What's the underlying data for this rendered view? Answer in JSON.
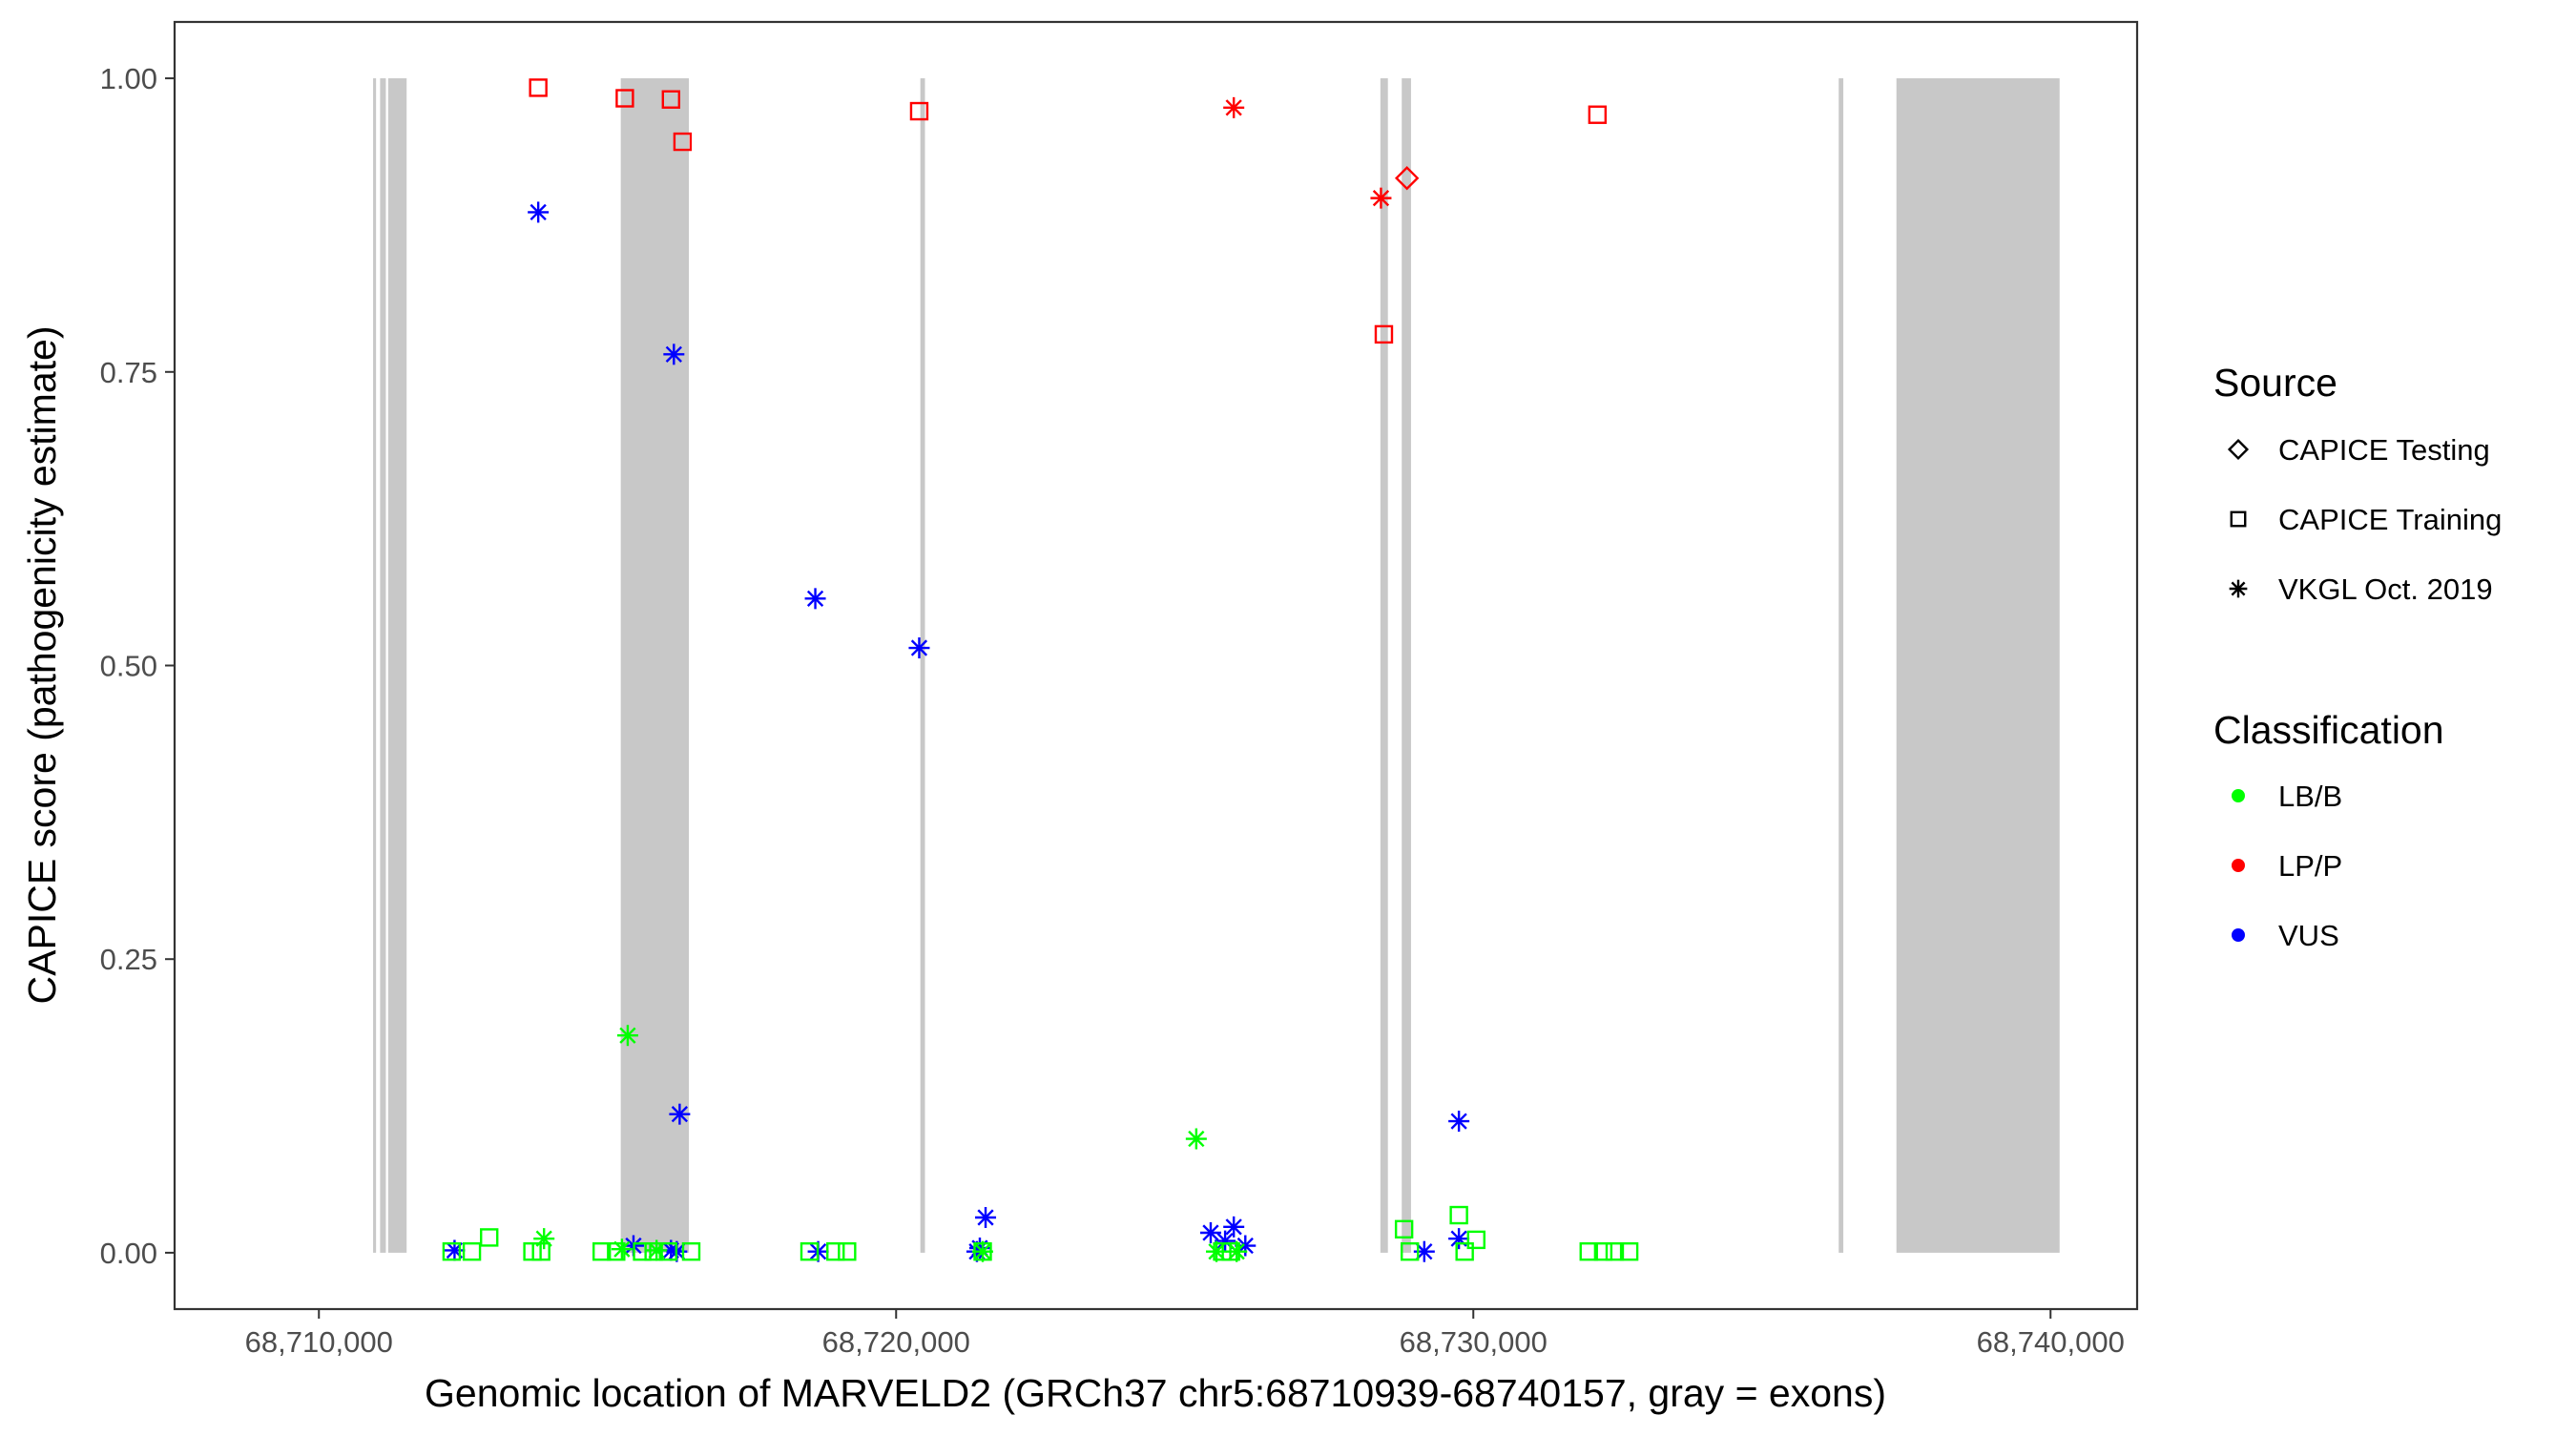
{
  "chart_data": {
    "type": "scatter",
    "xlabel": "Genomic location of MARVELD2 (GRCh37 chr5:68710939-68740157, gray = exons)",
    "ylabel": "CAPICE score (pathogenicity estimate)",
    "xlim": [
      68707500,
      68741500
    ],
    "ylim": [
      -0.048,
      1.048
    ],
    "x_ticks": [
      68710000,
      68720000,
      68730000,
      68740000
    ],
    "x_tick_labels": [
      "68,710,000",
      "68,720,000",
      "68,730,000",
      "68,740,000"
    ],
    "y_ticks": [
      0.0,
      0.25,
      0.5,
      0.75,
      1.0
    ],
    "y_tick_labels": [
      "0.00",
      "0.25",
      "0.50",
      "0.75",
      "1.00"
    ],
    "grid": false,
    "legend_position": "right",
    "exons": [
      {
        "start": 68710939,
        "end": 68710990
      },
      {
        "start": 68711060,
        "end": 68711160
      },
      {
        "start": 68711200,
        "end": 68711520
      },
      {
        "start": 68715230,
        "end": 68716410
      },
      {
        "start": 68720420,
        "end": 68720500
      },
      {
        "start": 68728390,
        "end": 68728520
      },
      {
        "start": 68728760,
        "end": 68728920
      },
      {
        "start": 68736330,
        "end": 68736410
      },
      {
        "start": 68737330,
        "end": 68740157
      }
    ],
    "legend": {
      "source": {
        "title": "Source",
        "items": [
          {
            "label": "CAPICE Testing",
            "shape": "diamond"
          },
          {
            "label": "CAPICE Training",
            "shape": "square"
          },
          {
            "label": "VKGL Oct. 2019",
            "shape": "asterisk"
          }
        ]
      },
      "classification": {
        "title": "Classification",
        "items": [
          {
            "label": "LB/B",
            "color": "#00ff00"
          },
          {
            "label": "LP/P",
            "color": "#ff0000"
          },
          {
            "label": "VUS",
            "color": "#0000ff"
          }
        ]
      }
    },
    "series": [
      {
        "source": "CAPICE Testing",
        "classification": "LP/P",
        "points": [
          {
            "x": 68728850,
            "y": 0.915
          }
        ]
      },
      {
        "source": "CAPICE Training",
        "classification": "LP/P",
        "points": [
          {
            "x": 68713800,
            "y": 0.992
          },
          {
            "x": 68715300,
            "y": 0.983
          },
          {
            "x": 68716100,
            "y": 0.982
          },
          {
            "x": 68716300,
            "y": 0.946
          },
          {
            "x": 68720400,
            "y": 0.972
          },
          {
            "x": 68728450,
            "y": 0.782
          },
          {
            "x": 68732150,
            "y": 0.969
          }
        ]
      },
      {
        "source": "VKGL Oct. 2019",
        "classification": "LP/P",
        "points": [
          {
            "x": 68725850,
            "y": 0.975
          },
          {
            "x": 68728400,
            "y": 0.898
          }
        ]
      },
      {
        "source": "VKGL Oct. 2019",
        "classification": "VUS",
        "points": [
          {
            "x": 68713800,
            "y": 0.886
          },
          {
            "x": 68716150,
            "y": 0.765
          },
          {
            "x": 68718600,
            "y": 0.557
          },
          {
            "x": 68720400,
            "y": 0.515
          },
          {
            "x": 68716250,
            "y": 0.118
          },
          {
            "x": 68729750,
            "y": 0.112
          },
          {
            "x": 68721550,
            "y": 0.03
          },
          {
            "x": 68725450,
            "y": 0.017
          },
          {
            "x": 68725850,
            "y": 0.022
          },
          {
            "x": 68725700,
            "y": 0.01
          },
          {
            "x": 68726050,
            "y": 0.006
          },
          {
            "x": 68729750,
            "y": 0.012
          },
          {
            "x": 68729150,
            "y": 0.001
          },
          {
            "x": 68712350,
            "y": 0.002
          },
          {
            "x": 68715450,
            "y": 0.006
          },
          {
            "x": 68716100,
            "y": 0.002
          },
          {
            "x": 68716200,
            "y": 0.001
          },
          {
            "x": 68718650,
            "y": 0.001
          },
          {
            "x": 68721450,
            "y": 0.004
          },
          {
            "x": 68721400,
            "y": 0.001
          }
        ]
      },
      {
        "source": "VKGL Oct. 2019",
        "classification": "LB/B",
        "points": [
          {
            "x": 68715350,
            "y": 0.185
          },
          {
            "x": 68725200,
            "y": 0.097
          },
          {
            "x": 68713900,
            "y": 0.012
          },
          {
            "x": 68715250,
            "y": 0.003
          },
          {
            "x": 68715850,
            "y": 0.002
          },
          {
            "x": 68725550,
            "y": 0.001
          },
          {
            "x": 68725900,
            "y": 0.001
          },
          {
            "x": 68721500,
            "y": 0.001
          }
        ]
      },
      {
        "source": "CAPICE Training",
        "classification": "LB/B",
        "points": [
          {
            "x": 68712300,
            "y": 0.001
          },
          {
            "x": 68712650,
            "y": 0.001
          },
          {
            "x": 68712950,
            "y": 0.013
          },
          {
            "x": 68713700,
            "y": 0.001
          },
          {
            "x": 68713850,
            "y": 0.001
          },
          {
            "x": 68714900,
            "y": 0.001
          },
          {
            "x": 68715150,
            "y": 0.001
          },
          {
            "x": 68715600,
            "y": 0.001
          },
          {
            "x": 68715800,
            "y": 0.001
          },
          {
            "x": 68716050,
            "y": 0.001
          },
          {
            "x": 68716450,
            "y": 0.001
          },
          {
            "x": 68718500,
            "y": 0.001
          },
          {
            "x": 68718950,
            "y": 0.001
          },
          {
            "x": 68719150,
            "y": 0.001
          },
          {
            "x": 68721500,
            "y": 0.001
          },
          {
            "x": 68725650,
            "y": 0.001
          },
          {
            "x": 68725800,
            "y": 0.001
          },
          {
            "x": 68728800,
            "y": 0.02
          },
          {
            "x": 68728900,
            "y": 0.001
          },
          {
            "x": 68729750,
            "y": 0.032
          },
          {
            "x": 68729850,
            "y": 0.001
          },
          {
            "x": 68730050,
            "y": 0.011
          },
          {
            "x": 68732000,
            "y": 0.001
          },
          {
            "x": 68732250,
            "y": 0.001
          },
          {
            "x": 68732450,
            "y": 0.001
          },
          {
            "x": 68732700,
            "y": 0.001
          }
        ]
      }
    ]
  }
}
